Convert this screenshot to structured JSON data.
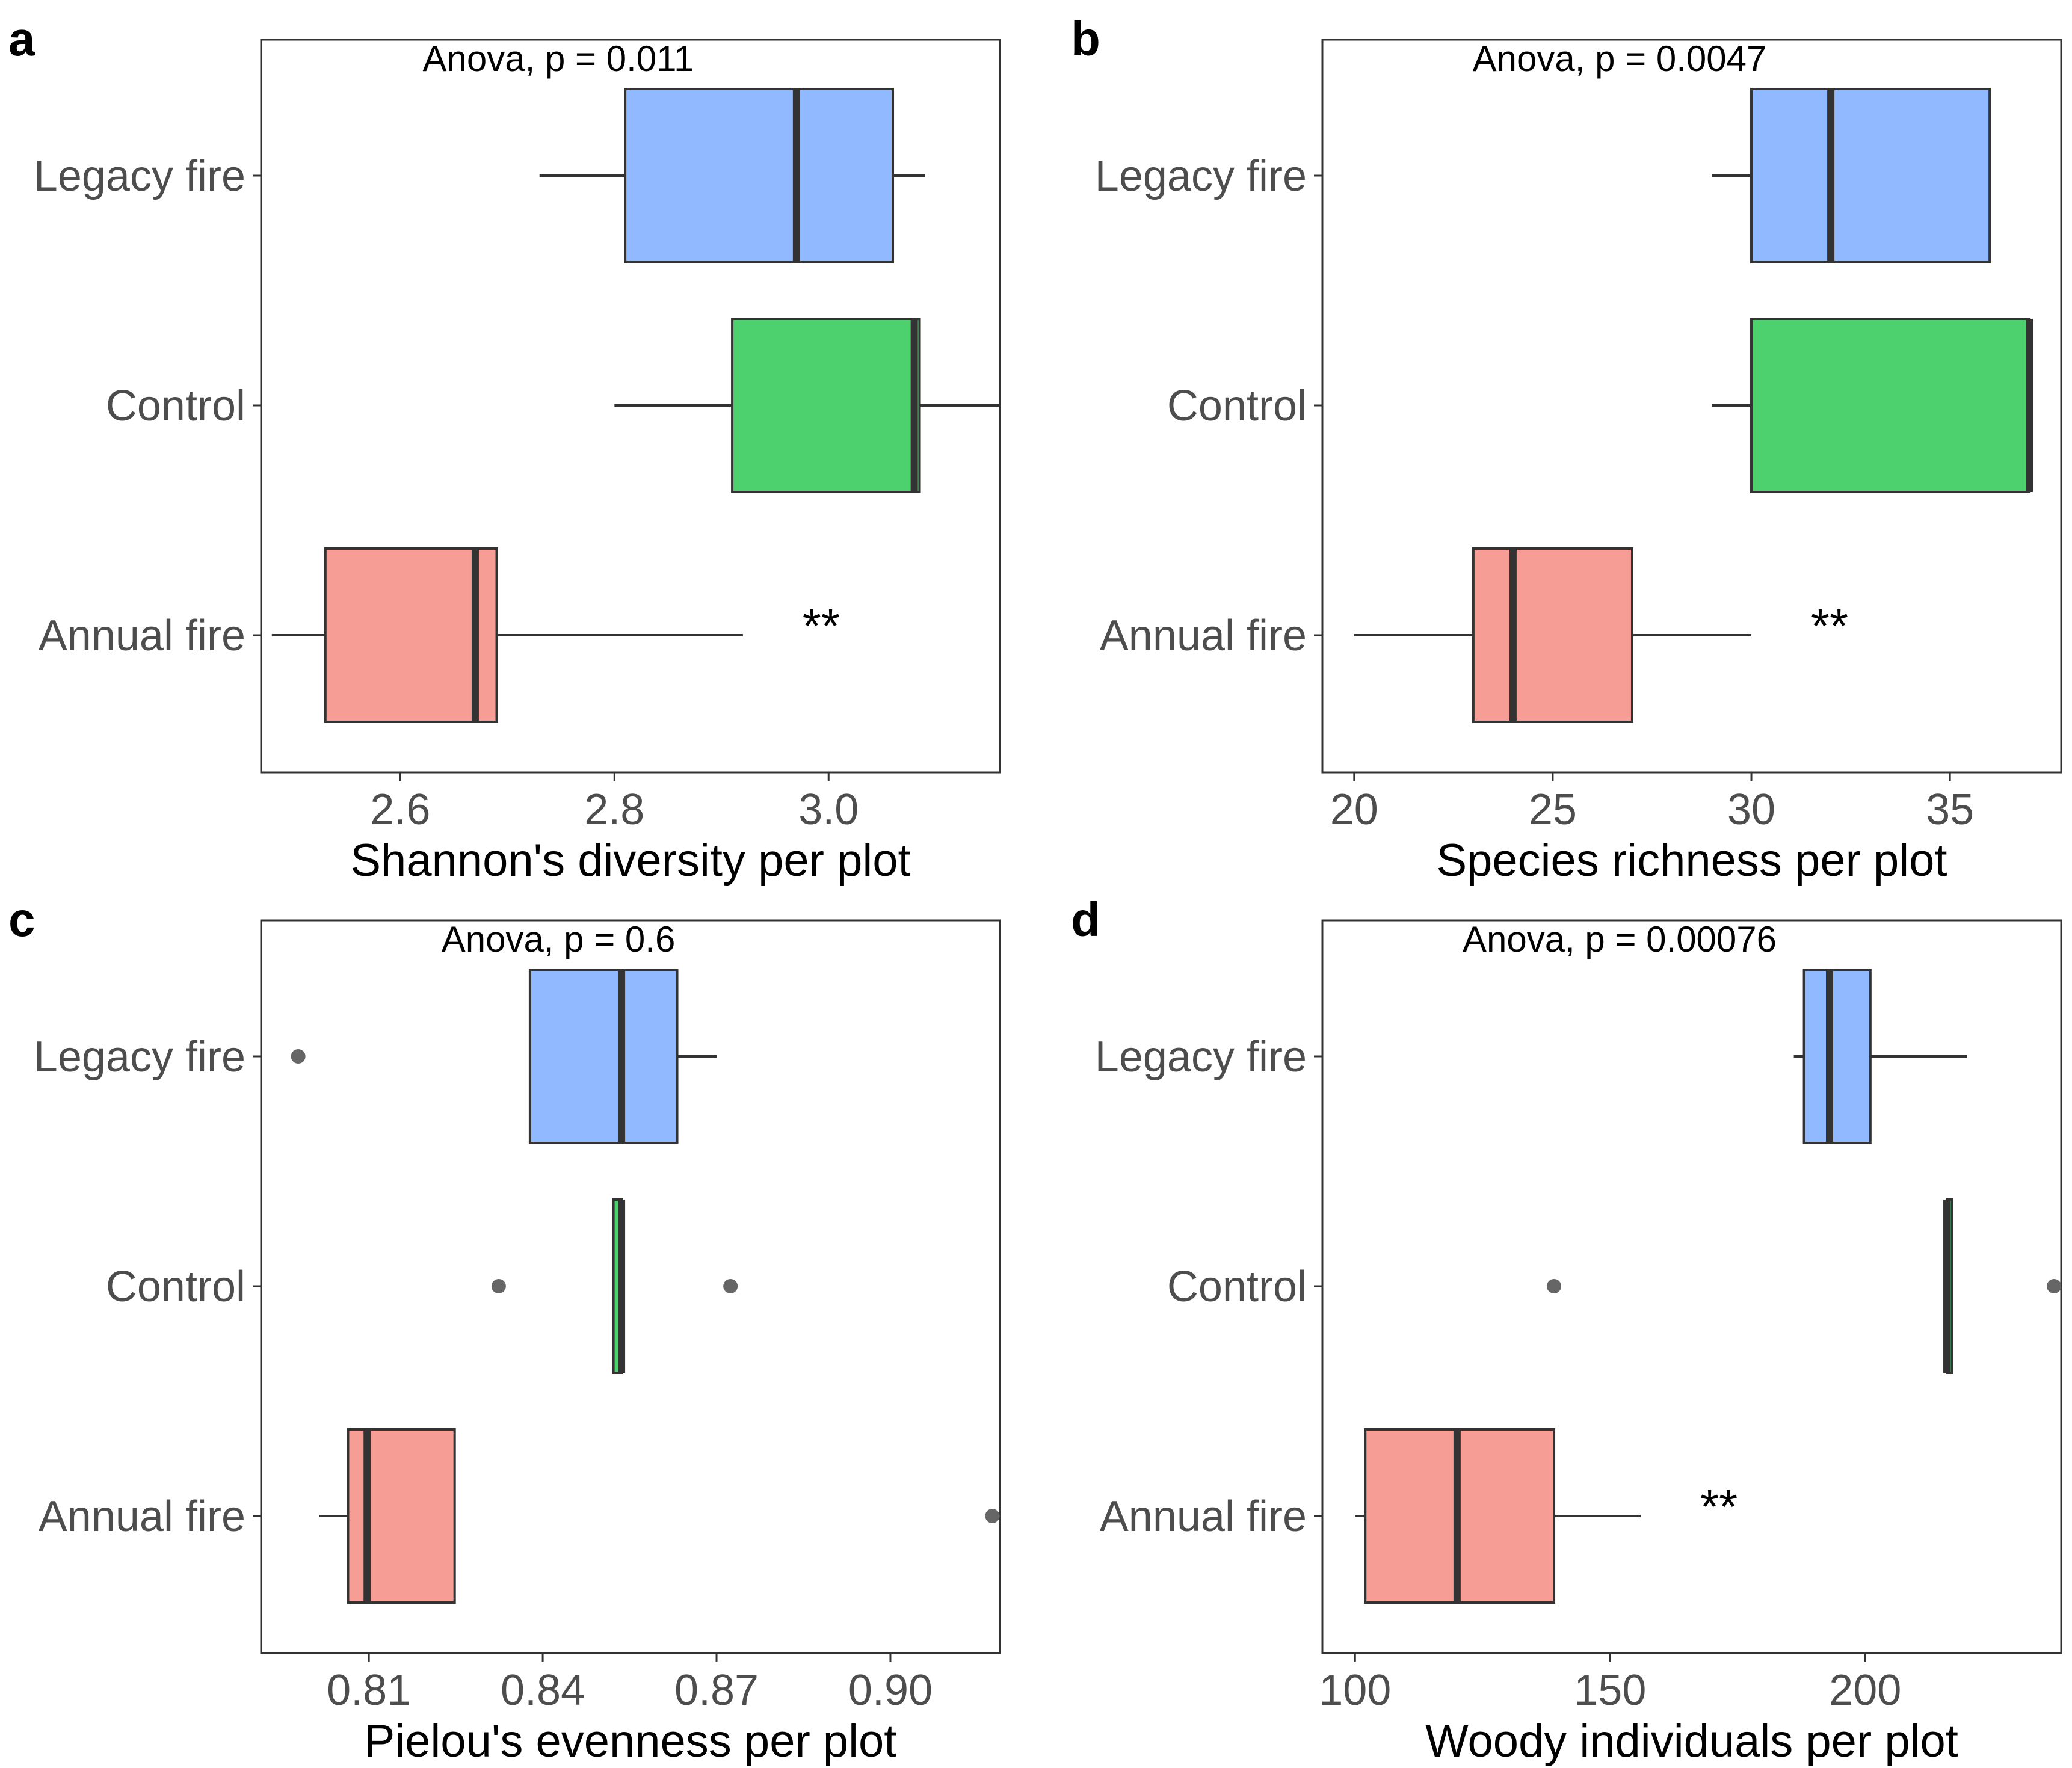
{
  "chart_data": [
    {
      "panel": "a",
      "type": "boxplot",
      "orientation": "horizontal",
      "annotation": "Anova, p = 0.011",
      "xlabel": "Shannon's diversity per plot",
      "xlim": [
        2.47,
        3.16
      ],
      "xticks": [
        2.6,
        2.8,
        3.0
      ],
      "xtick_labels": [
        "2.6",
        "2.8",
        "3.0"
      ],
      "categories": [
        "Legacy fire",
        "Control",
        "Annual fire"
      ],
      "boxes": [
        {
          "group": "Legacy fire",
          "color": "#91b9ff",
          "whisker_low": 2.73,
          "q1": 2.81,
          "median": 2.97,
          "q3": 3.06,
          "whisker_high": 3.09,
          "outliers": []
        },
        {
          "group": "Control",
          "color": "#4dd06e",
          "whisker_low": 2.8,
          "q1": 2.91,
          "median": 3.08,
          "q3": 3.085,
          "whisker_high": 3.16,
          "outliers": []
        },
        {
          "group": "Annual fire",
          "color": "#f69e96",
          "whisker_low": 2.48,
          "q1": 2.53,
          "median": 2.67,
          "q3": 2.69,
          "whisker_high": 2.92,
          "outliers": []
        }
      ],
      "significance": [
        {
          "group": "Annual fire",
          "label": "**"
        }
      ]
    },
    {
      "panel": "b",
      "type": "boxplot",
      "orientation": "horizontal",
      "annotation": "Anova, p = 0.0047",
      "xlabel": "Species richness per plot",
      "xlim": [
        19.2,
        37.8
      ],
      "xticks": [
        20,
        25,
        30,
        35
      ],
      "xtick_labels": [
        "20",
        "25",
        "30",
        "35"
      ],
      "categories": [
        "Legacy fire",
        "Control",
        "Annual fire"
      ],
      "boxes": [
        {
          "group": "Legacy fire",
          "color": "#91b9ff",
          "whisker_low": 29,
          "q1": 30,
          "median": 32,
          "q3": 36,
          "whisker_high": 36,
          "outliers": []
        },
        {
          "group": "Control",
          "color": "#4dd06e",
          "whisker_low": 29,
          "q1": 30,
          "median": 37,
          "q3": 37,
          "whisker_high": 37,
          "outliers": []
        },
        {
          "group": "Annual fire",
          "color": "#f69e96",
          "whisker_low": 20,
          "q1": 23,
          "median": 24,
          "q3": 27,
          "whisker_high": 30,
          "outliers": []
        }
      ],
      "significance": [
        {
          "group": "Annual fire",
          "label": "**"
        }
      ]
    },
    {
      "panel": "c",
      "type": "boxplot",
      "orientation": "horizontal",
      "annotation": "Anova, p = 0.6",
      "xlabel": "Pielou's evenness per plot",
      "xlim": [
        0.7914,
        0.9189
      ],
      "xticks": [
        0.81,
        0.84,
        0.87,
        0.9
      ],
      "xtick_labels": [
        "0.81",
        "0.84",
        "0.87",
        "0.90"
      ],
      "categories": [
        "Legacy fire",
        "Control",
        "Annual fire"
      ],
      "boxes": [
        {
          "group": "Legacy fire",
          "color": "#91b9ff",
          "whisker_low": 0.8378,
          "q1": 0.8378,
          "median": 0.8536,
          "q3": 0.8632,
          "whisker_high": 0.87,
          "outliers": [
            0.7978
          ]
        },
        {
          "group": "Control",
          "color": "#4dd06e",
          "whisker_low": 0.8522,
          "q1": 0.8522,
          "median": 0.8536,
          "q3": 0.8536,
          "whisker_high": 0.8536,
          "outliers": [
            0.8324,
            0.8724
          ]
        },
        {
          "group": "Annual fire",
          "color": "#f69e96",
          "whisker_low": 0.8014,
          "q1": 0.8064,
          "median": 0.8097,
          "q3": 0.8248,
          "whisker_high": 0.8248,
          "outliers": [
            0.9176
          ]
        }
      ],
      "significance": []
    },
    {
      "panel": "d",
      "type": "boxplot",
      "orientation": "horizontal",
      "annotation": "Anova, p = 0.00076",
      "xlabel": "Woody individuals per plot",
      "xlim": [
        93.6,
        238.4
      ],
      "xticks": [
        100,
        150,
        200
      ],
      "xtick_labels": [
        "100",
        "150",
        "200"
      ],
      "categories": [
        "Legacy fire",
        "Control",
        "Annual fire"
      ],
      "boxes": [
        {
          "group": "Legacy fire",
          "color": "#91b9ff",
          "whisker_low": 186,
          "q1": 188,
          "median": 193,
          "q3": 201,
          "whisker_high": 220,
          "outliers": []
        },
        {
          "group": "Control",
          "color": "#4dd06e",
          "whisker_low": 216,
          "q1": 216,
          "median": 216,
          "q3": 217,
          "whisker_high": 217,
          "outliers": [
            139,
            237
          ]
        },
        {
          "group": "Annual fire",
          "color": "#f69e96",
          "whisker_low": 100,
          "q1": 102,
          "median": 120,
          "q3": 139,
          "whisker_high": 156,
          "outliers": []
        }
      ],
      "significance": [
        {
          "group": "Annual fire",
          "label": "**"
        }
      ]
    }
  ]
}
